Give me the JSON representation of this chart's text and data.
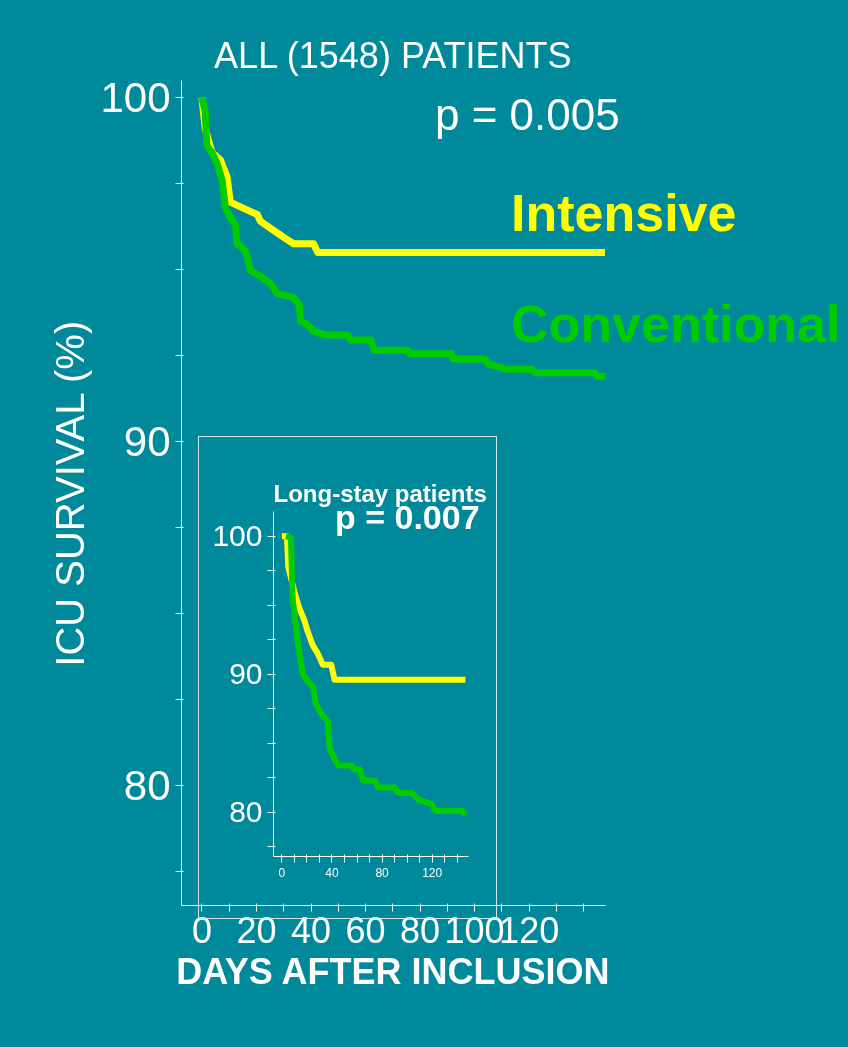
{
  "chart_data": [
    {
      "type": "line",
      "title": "ALL (1548) PATIENTS",
      "xlabel": "DAYS AFTER INCLUSION",
      "ylabel": "ICU SURVIVAL (%)",
      "annotations": [
        "p = 0.005"
      ],
      "xlim": [
        -7.5,
        148
      ],
      "ylim": [
        76.5,
        100.5
      ],
      "xticks": [
        0,
        {
          "value": 10,
          "label": null
        },
        20,
        {
          "value": 30,
          "label": null
        },
        40,
        {
          "value": 50,
          "label": null
        },
        60,
        {
          "value": 70,
          "label": null
        },
        80,
        {
          "value": 90,
          "label": null
        },
        100,
        {
          "value": 110,
          "label": null
        },
        120,
        {
          "value": 130,
          "label": null
        },
        {
          "value": 140,
          "label": null
        }
      ],
      "yticks": [
        {
          "value": 77.5,
          "label": null
        },
        80,
        {
          "value": 82.5,
          "label": null
        },
        {
          "value": 85,
          "label": null
        },
        {
          "value": 87.5,
          "label": null
        },
        90,
        {
          "value": 92.5,
          "label": null
        },
        {
          "value": 95,
          "label": null
        },
        {
          "value": 97.5,
          "label": null
        },
        100
      ],
      "grid": false,
      "line_style": "solid",
      "marker": "none",
      "series": [
        {
          "name": "Intensive",
          "color": "#ffff00",
          "x": [
            0,
            1.2,
            3.7,
            6.7,
            9.2,
            10.4,
            14.7,
            20.3,
            21.5,
            25.2,
            30.7,
            33.6,
            41,
            42.4,
            147.8
          ],
          "values": [
            100,
            99.1,
            98.4,
            98.2,
            97.7,
            96.96,
            96.8,
            96.6,
            96.4,
            96.2,
            95.9,
            95.75,
            95.75,
            95.5,
            95.5
          ]
        },
        {
          "name": "Conventional",
          "color": "#00cc00",
          "x": [
            0,
            1.2,
            1.8,
            3.7,
            5.5,
            7.4,
            8.6,
            10.4,
            12.3,
            12.9,
            16,
            17.8,
            21.5,
            25.2,
            27.6,
            33.2,
            35.6,
            36.2,
            38.7,
            41.1,
            44.8,
            53.4,
            54.6,
            62,
            63.2,
            75.5,
            76.1,
            91.5,
            92.1,
            103.8,
            105,
            109.9,
            111.1,
            121,
            122.2,
            144.3,
            144.9,
            148
          ],
          "values": [
            100,
            99.6,
            98.6,
            98.4,
            98.1,
            97.6,
            96.8,
            96.5,
            96.3,
            95.75,
            95.55,
            94.97,
            94.8,
            94.6,
            94.3,
            94.2,
            94.0,
            93.5,
            93.4,
            93.2,
            93.1,
            93.1,
            92.95,
            92.95,
            92.65,
            92.65,
            92.55,
            92.55,
            92.4,
            92.4,
            92.25,
            92.15,
            92.1,
            92.1,
            92.0,
            92.0,
            91.9,
            91.9
          ]
        }
      ]
    },
    {
      "type": "line",
      "title": "Long-stay patients",
      "annotations": [
        "p = 0.007"
      ],
      "xlim": [
        -6.7,
        149
      ],
      "ylim": [
        76.8,
        101.8
      ],
      "xticks": [
        0,
        {
          "value": 10,
          "label": null
        },
        {
          "value": 20,
          "label": null
        },
        {
          "value": 30,
          "label": null
        },
        40,
        {
          "value": 50,
          "label": null
        },
        {
          "value": 60,
          "label": null
        },
        {
          "value": 70,
          "label": null
        },
        80,
        {
          "value": 90,
          "label": null
        },
        {
          "value": 100,
          "label": null
        },
        {
          "value": 110,
          "label": null
        },
        120,
        {
          "value": 130,
          "label": null
        },
        {
          "value": 140,
          "label": null
        }
      ],
      "yticks": [
        {
          "value": 77.5,
          "label": null
        },
        80,
        {
          "value": 82.5,
          "label": null
        },
        {
          "value": 85,
          "label": null
        },
        {
          "value": 87.5,
          "label": null
        },
        90,
        {
          "value": 92.5,
          "label": null
        },
        {
          "value": 95,
          "label": null
        },
        {
          "value": 97.5,
          "label": null
        },
        100
      ],
      "grid": false,
      "line_style": "solid",
      "marker": "none",
      "series": [
        {
          "color": "#ffff00",
          "x": [
            0,
            4.0,
            5.1,
            9.9,
            13.9,
            18,
            20.6,
            24.7,
            28.7,
            32.7,
            39.4,
            42.1,
            146.6
          ],
          "values": [
            100,
            100,
            97.8,
            96.0,
            94.8,
            93.9,
            93.1,
            92.1,
            91.5,
            90.7,
            90.7,
            89.6,
            89.6
          ]
        },
        {
          "color": "#00cc00",
          "x": [
            3.2,
            7.2,
            8.6,
            12.6,
            16.6,
            20.6,
            24.7,
            27.3,
            32.7,
            36.7,
            38.1,
            42.1,
            44.8,
            55.5,
            58.2,
            62.2,
            64.9,
            74.3,
            76.9,
            90.3,
            93.0,
            103.8,
            109.1,
            119.8,
            122.5,
            144,
            146.6
          ],
          "values": [
            100,
            99.9,
            95.5,
            92.4,
            90.0,
            89.5,
            89.1,
            87.8,
            87.0,
            86.6,
            84.6,
            83.9,
            83.4,
            83.4,
            83.1,
            83.1,
            82.3,
            82.3,
            81.8,
            81.8,
            81.4,
            81.4,
            80.9,
            80.6,
            80.1,
            80.1,
            79.8
          ]
        }
      ]
    }
  ]
}
